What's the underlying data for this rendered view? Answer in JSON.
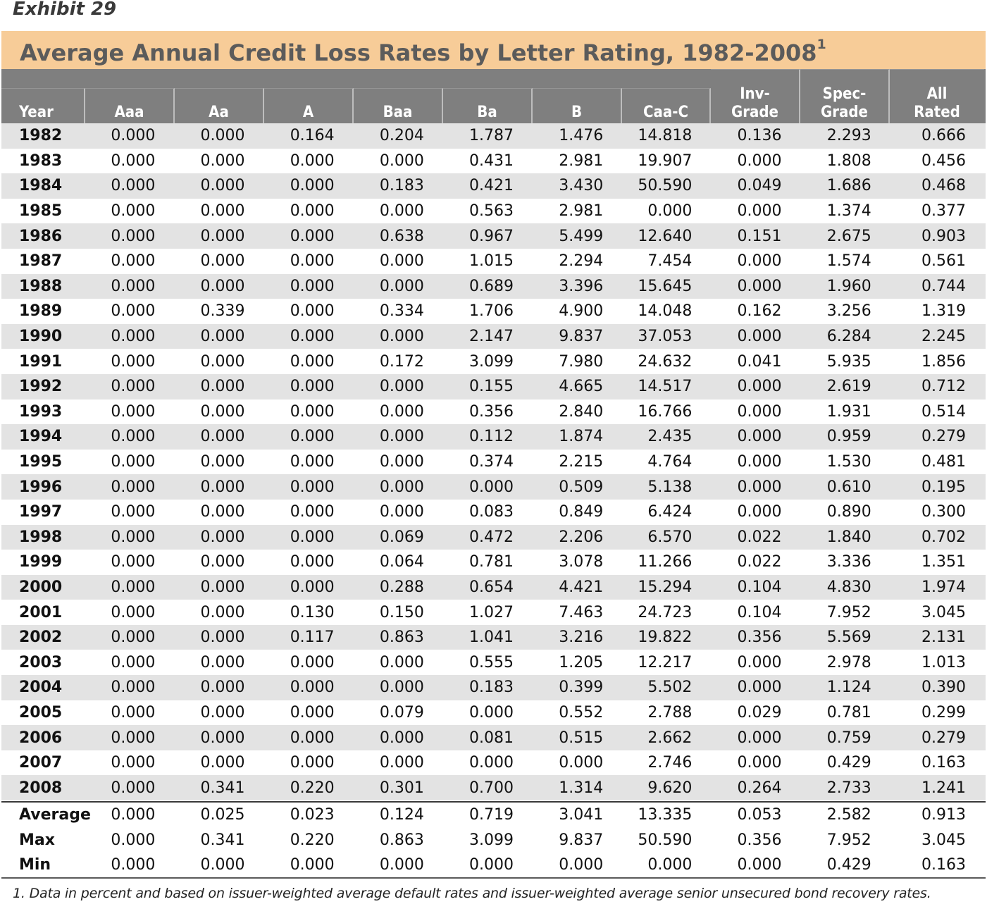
{
  "exhibit": "Exhibit 29",
  "title": "Average Annual Credit Loss Rates by Letter Rating, 1982-2008",
  "title_sup": "1",
  "columns": [
    {
      "line1": "",
      "line2": "Year"
    },
    {
      "line1": "",
      "line2": "Aaa"
    },
    {
      "line1": "",
      "line2": "Aa"
    },
    {
      "line1": "",
      "line2": "A"
    },
    {
      "line1": "",
      "line2": "Baa"
    },
    {
      "line1": "",
      "line2": "Ba"
    },
    {
      "line1": "",
      "line2": "B"
    },
    {
      "line1": "",
      "line2": "Caa-C"
    },
    {
      "line1": "Inv-",
      "line2": "Grade"
    },
    {
      "line1": "Spec-",
      "line2": "Grade"
    },
    {
      "line1": "All",
      "line2": "Rated"
    }
  ],
  "rows": [
    [
      "1982",
      "0.000",
      "0.000",
      "0.164",
      "0.204",
      "1.787",
      "1.476",
      "14.818",
      "0.136",
      "2.293",
      "0.666"
    ],
    [
      "1983",
      "0.000",
      "0.000",
      "0.000",
      "0.000",
      "0.431",
      "2.981",
      "19.907",
      "0.000",
      "1.808",
      "0.456"
    ],
    [
      "1984",
      "0.000",
      "0.000",
      "0.000",
      "0.183",
      "0.421",
      "3.430",
      "50.590",
      "0.049",
      "1.686",
      "0.468"
    ],
    [
      "1985",
      "0.000",
      "0.000",
      "0.000",
      "0.000",
      "0.563",
      "2.981",
      "0.000",
      "0.000",
      "1.374",
      "0.377"
    ],
    [
      "1986",
      "0.000",
      "0.000",
      "0.000",
      "0.638",
      "0.967",
      "5.499",
      "12.640",
      "0.151",
      "2.675",
      "0.903"
    ],
    [
      "1987",
      "0.000",
      "0.000",
      "0.000",
      "0.000",
      "1.015",
      "2.294",
      "7.454",
      "0.000",
      "1.574",
      "0.561"
    ],
    [
      "1988",
      "0.000",
      "0.000",
      "0.000",
      "0.000",
      "0.689",
      "3.396",
      "15.645",
      "0.000",
      "1.960",
      "0.744"
    ],
    [
      "1989",
      "0.000",
      "0.339",
      "0.000",
      "0.334",
      "1.706",
      "4.900",
      "14.048",
      "0.162",
      "3.256",
      "1.319"
    ],
    [
      "1990",
      "0.000",
      "0.000",
      "0.000",
      "0.000",
      "2.147",
      "9.837",
      "37.053",
      "0.000",
      "6.284",
      "2.245"
    ],
    [
      "1991",
      "0.000",
      "0.000",
      "0.000",
      "0.172",
      "3.099",
      "7.980",
      "24.632",
      "0.041",
      "5.935",
      "1.856"
    ],
    [
      "1992",
      "0.000",
      "0.000",
      "0.000",
      "0.000",
      "0.155",
      "4.665",
      "14.517",
      "0.000",
      "2.619",
      "0.712"
    ],
    [
      "1993",
      "0.000",
      "0.000",
      "0.000",
      "0.000",
      "0.356",
      "2.840",
      "16.766",
      "0.000",
      "1.931",
      "0.514"
    ],
    [
      "1994",
      "0.000",
      "0.000",
      "0.000",
      "0.000",
      "0.112",
      "1.874",
      "2.435",
      "0.000",
      "0.959",
      "0.279"
    ],
    [
      "1995",
      "0.000",
      "0.000",
      "0.000",
      "0.000",
      "0.374",
      "2.215",
      "4.764",
      "0.000",
      "1.530",
      "0.481"
    ],
    [
      "1996",
      "0.000",
      "0.000",
      "0.000",
      "0.000",
      "0.000",
      "0.509",
      "5.138",
      "0.000",
      "0.610",
      "0.195"
    ],
    [
      "1997",
      "0.000",
      "0.000",
      "0.000",
      "0.000",
      "0.083",
      "0.849",
      "6.424",
      "0.000",
      "0.890",
      "0.300"
    ],
    [
      "1998",
      "0.000",
      "0.000",
      "0.000",
      "0.069",
      "0.472",
      "2.206",
      "6.570",
      "0.022",
      "1.840",
      "0.702"
    ],
    [
      "1999",
      "0.000",
      "0.000",
      "0.000",
      "0.064",
      "0.781",
      "3.078",
      "11.266",
      "0.022",
      "3.336",
      "1.351"
    ],
    [
      "2000",
      "0.000",
      "0.000",
      "0.000",
      "0.288",
      "0.654",
      "4.421",
      "15.294",
      "0.104",
      "4.830",
      "1.974"
    ],
    [
      "2001",
      "0.000",
      "0.000",
      "0.130",
      "0.150",
      "1.027",
      "7.463",
      "24.723",
      "0.104",
      "7.952",
      "3.045"
    ],
    [
      "2002",
      "0.000",
      "0.000",
      "0.117",
      "0.863",
      "1.041",
      "3.216",
      "19.822",
      "0.356",
      "5.569",
      "2.131"
    ],
    [
      "2003",
      "0.000",
      "0.000",
      "0.000",
      "0.000",
      "0.555",
      "1.205",
      "12.217",
      "0.000",
      "2.978",
      "1.013"
    ],
    [
      "2004",
      "0.000",
      "0.000",
      "0.000",
      "0.000",
      "0.183",
      "0.399",
      "5.502",
      "0.000",
      "1.124",
      "0.390"
    ],
    [
      "2005",
      "0.000",
      "0.000",
      "0.000",
      "0.079",
      "0.000",
      "0.552",
      "2.788",
      "0.029",
      "0.781",
      "0.299"
    ],
    [
      "2006",
      "0.000",
      "0.000",
      "0.000",
      "0.000",
      "0.081",
      "0.515",
      "2.662",
      "0.000",
      "0.759",
      "0.279"
    ],
    [
      "2007",
      "0.000",
      "0.000",
      "0.000",
      "0.000",
      "0.000",
      "0.000",
      "2.746",
      "0.000",
      "0.429",
      "0.163"
    ],
    [
      "2008",
      "0.000",
      "0.341",
      "0.220",
      "0.301",
      "0.700",
      "1.314",
      "9.620",
      "0.264",
      "2.733",
      "1.241"
    ]
  ],
  "summary": [
    [
      "Average",
      "0.000",
      "0.025",
      "0.023",
      "0.124",
      "0.719",
      "3.041",
      "13.335",
      "0.053",
      "2.582",
      "0.913"
    ],
    [
      "Max",
      "0.000",
      "0.341",
      "0.220",
      "0.863",
      "3.099",
      "9.837",
      "50.590",
      "0.356",
      "7.952",
      "3.045"
    ],
    [
      "Min",
      "0.000",
      "0.000",
      "0.000",
      "0.000",
      "0.000",
      "0.000",
      "0.000",
      "0.000",
      "0.429",
      "0.163"
    ]
  ],
  "footnote": "1. Data in percent and based on issuer-weighted average default rates and issuer-weighted average senior unsecured bond recovery rates.",
  "colors": {
    "title_band": "#f7cc98",
    "header_band": "#7f7f7f",
    "row_shade": "#e3e3e3"
  }
}
